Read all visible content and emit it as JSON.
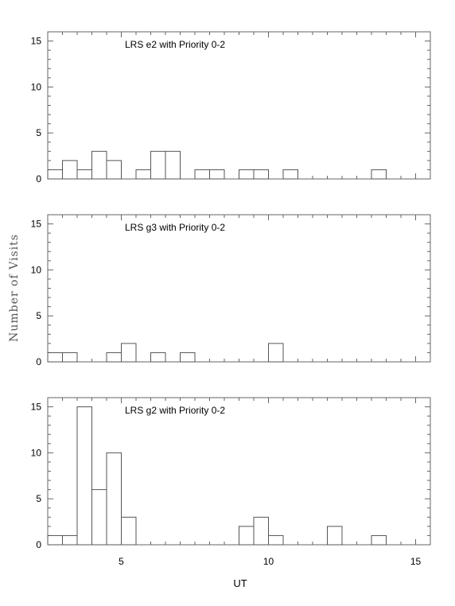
{
  "chart_data": {
    "type": "histogram",
    "xlabel": "UT",
    "ylabel": "Number of Visits",
    "xlim": [
      2.5,
      15.5
    ],
    "ylim": [
      0,
      16
    ],
    "x_ticks": [
      5,
      10,
      15
    ],
    "x_tick_labels": [
      "5",
      "10",
      "15"
    ],
    "y_ticks": [
      0,
      5,
      10,
      15
    ],
    "y_tick_labels": [
      "0",
      "5",
      "10",
      "15"
    ],
    "bin_width": 0.5,
    "grid": false,
    "colors": {
      "line": "#555555",
      "axes": "#666666",
      "text": "#000000"
    },
    "panels": [
      {
        "title": "LRS e2 with Priority 0-2",
        "bins": [
          {
            "x": 2.5,
            "y": 1
          },
          {
            "x": 3.0,
            "y": 2
          },
          {
            "x": 3.5,
            "y": 1
          },
          {
            "x": 4.0,
            "y": 3
          },
          {
            "x": 4.5,
            "y": 2
          },
          {
            "x": 5.0,
            "y": 0
          },
          {
            "x": 5.5,
            "y": 1
          },
          {
            "x": 6.0,
            "y": 3
          },
          {
            "x": 6.5,
            "y": 3
          },
          {
            "x": 7.0,
            "y": 0
          },
          {
            "x": 7.5,
            "y": 1
          },
          {
            "x": 8.0,
            "y": 1
          },
          {
            "x": 8.5,
            "y": 0
          },
          {
            "x": 9.0,
            "y": 1
          },
          {
            "x": 9.5,
            "y": 1
          },
          {
            "x": 10.0,
            "y": 0
          },
          {
            "x": 10.5,
            "y": 1
          },
          {
            "x": 11.0,
            "y": 0
          },
          {
            "x": 11.5,
            "y": 0
          },
          {
            "x": 12.0,
            "y": 0
          },
          {
            "x": 12.5,
            "y": 0
          },
          {
            "x": 13.0,
            "y": 0
          },
          {
            "x": 13.5,
            "y": 1
          },
          {
            "x": 14.0,
            "y": 0
          },
          {
            "x": 14.5,
            "y": 0
          },
          {
            "x": 15.0,
            "y": 0
          }
        ]
      },
      {
        "title": "LRS g3 with Priority 0-2",
        "bins": [
          {
            "x": 2.5,
            "y": 1
          },
          {
            "x": 3.0,
            "y": 1
          },
          {
            "x": 3.5,
            "y": 0
          },
          {
            "x": 4.0,
            "y": 0
          },
          {
            "x": 4.5,
            "y": 1
          },
          {
            "x": 5.0,
            "y": 2
          },
          {
            "x": 5.5,
            "y": 0
          },
          {
            "x": 6.0,
            "y": 1
          },
          {
            "x": 6.5,
            "y": 0
          },
          {
            "x": 7.0,
            "y": 1
          },
          {
            "x": 7.5,
            "y": 0
          },
          {
            "x": 8.0,
            "y": 0
          },
          {
            "x": 8.5,
            "y": 0
          },
          {
            "x": 9.0,
            "y": 0
          },
          {
            "x": 9.5,
            "y": 0
          },
          {
            "x": 10.0,
            "y": 2
          },
          {
            "x": 10.5,
            "y": 0
          },
          {
            "x": 11.0,
            "y": 0
          },
          {
            "x": 11.5,
            "y": 0
          },
          {
            "x": 12.0,
            "y": 0
          },
          {
            "x": 12.5,
            "y": 0
          },
          {
            "x": 13.0,
            "y": 0
          },
          {
            "x": 13.5,
            "y": 0
          },
          {
            "x": 14.0,
            "y": 0
          },
          {
            "x": 14.5,
            "y": 0
          },
          {
            "x": 15.0,
            "y": 0
          }
        ]
      },
      {
        "title": "LRS g2 with Priority 0-2",
        "bins": [
          {
            "x": 2.5,
            "y": 1
          },
          {
            "x": 3.0,
            "y": 1
          },
          {
            "x": 3.5,
            "y": 15
          },
          {
            "x": 4.0,
            "y": 6
          },
          {
            "x": 4.5,
            "y": 10
          },
          {
            "x": 5.0,
            "y": 3
          },
          {
            "x": 5.5,
            "y": 0
          },
          {
            "x": 6.0,
            "y": 0
          },
          {
            "x": 6.5,
            "y": 0
          },
          {
            "x": 7.0,
            "y": 0
          },
          {
            "x": 7.5,
            "y": 0
          },
          {
            "x": 8.0,
            "y": 0
          },
          {
            "x": 8.5,
            "y": 0
          },
          {
            "x": 9.0,
            "y": 2
          },
          {
            "x": 9.5,
            "y": 3
          },
          {
            "x": 10.0,
            "y": 1
          },
          {
            "x": 10.5,
            "y": 0
          },
          {
            "x": 11.0,
            "y": 0
          },
          {
            "x": 11.5,
            "y": 0
          },
          {
            "x": 12.0,
            "y": 2
          },
          {
            "x": 12.5,
            "y": 0
          },
          {
            "x": 13.0,
            "y": 0
          },
          {
            "x": 13.5,
            "y": 1
          },
          {
            "x": 14.0,
            "y": 0
          },
          {
            "x": 14.5,
            "y": 0
          },
          {
            "x": 15.0,
            "y": 0
          }
        ]
      }
    ]
  }
}
